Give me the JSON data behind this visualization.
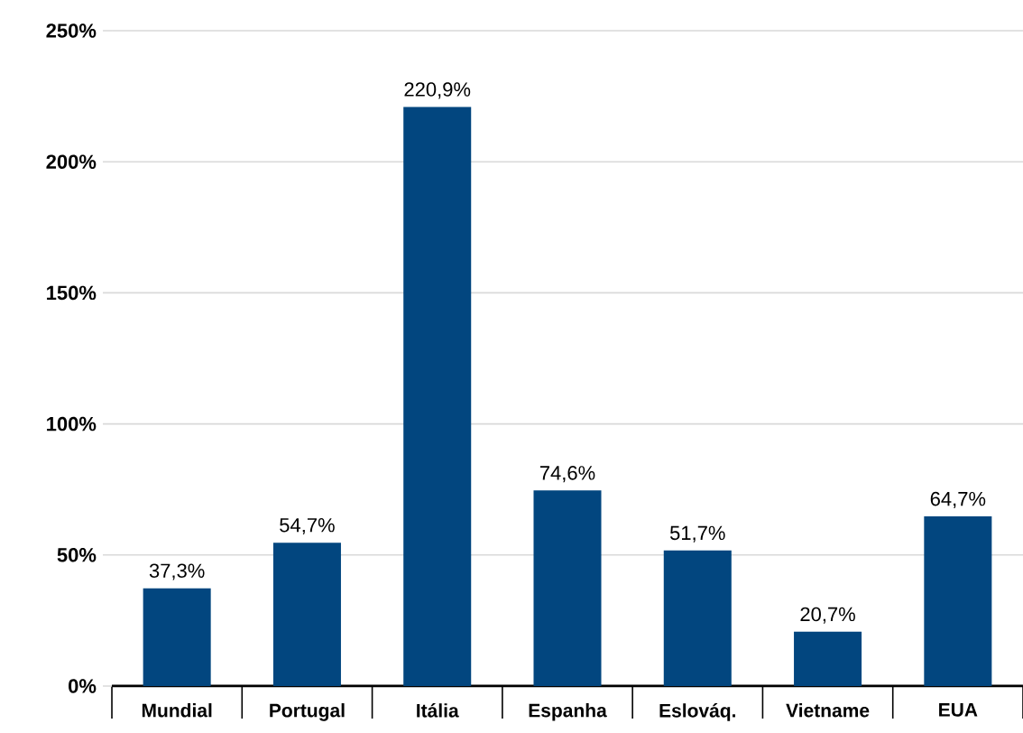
{
  "chart_data": {
    "type": "bar",
    "categories": [
      "Mundial",
      "Portugal",
      "Itália",
      "Espanha",
      "Eslováq.",
      "Vietname",
      "EUA"
    ],
    "values": [
      37.3,
      54.7,
      220.9,
      74.6,
      51.7,
      20.7,
      64.7
    ],
    "value_labels": [
      "37,3%",
      "54,7%",
      "220,9%",
      "74,6%",
      "51,7%",
      "20,7%",
      "64,7%"
    ],
    "color": "#02467f",
    "ylim": [
      0,
      250
    ],
    "yticks": [
      {
        "value": 0,
        "label": "0%"
      },
      {
        "value": 50,
        "label": "50%"
      },
      {
        "value": 100,
        "label": "100%"
      },
      {
        "value": 150,
        "label": "150%"
      },
      {
        "value": 200,
        "label": "200%"
      },
      {
        "value": 250,
        "label": "250%"
      }
    ],
    "grid": "y"
  }
}
